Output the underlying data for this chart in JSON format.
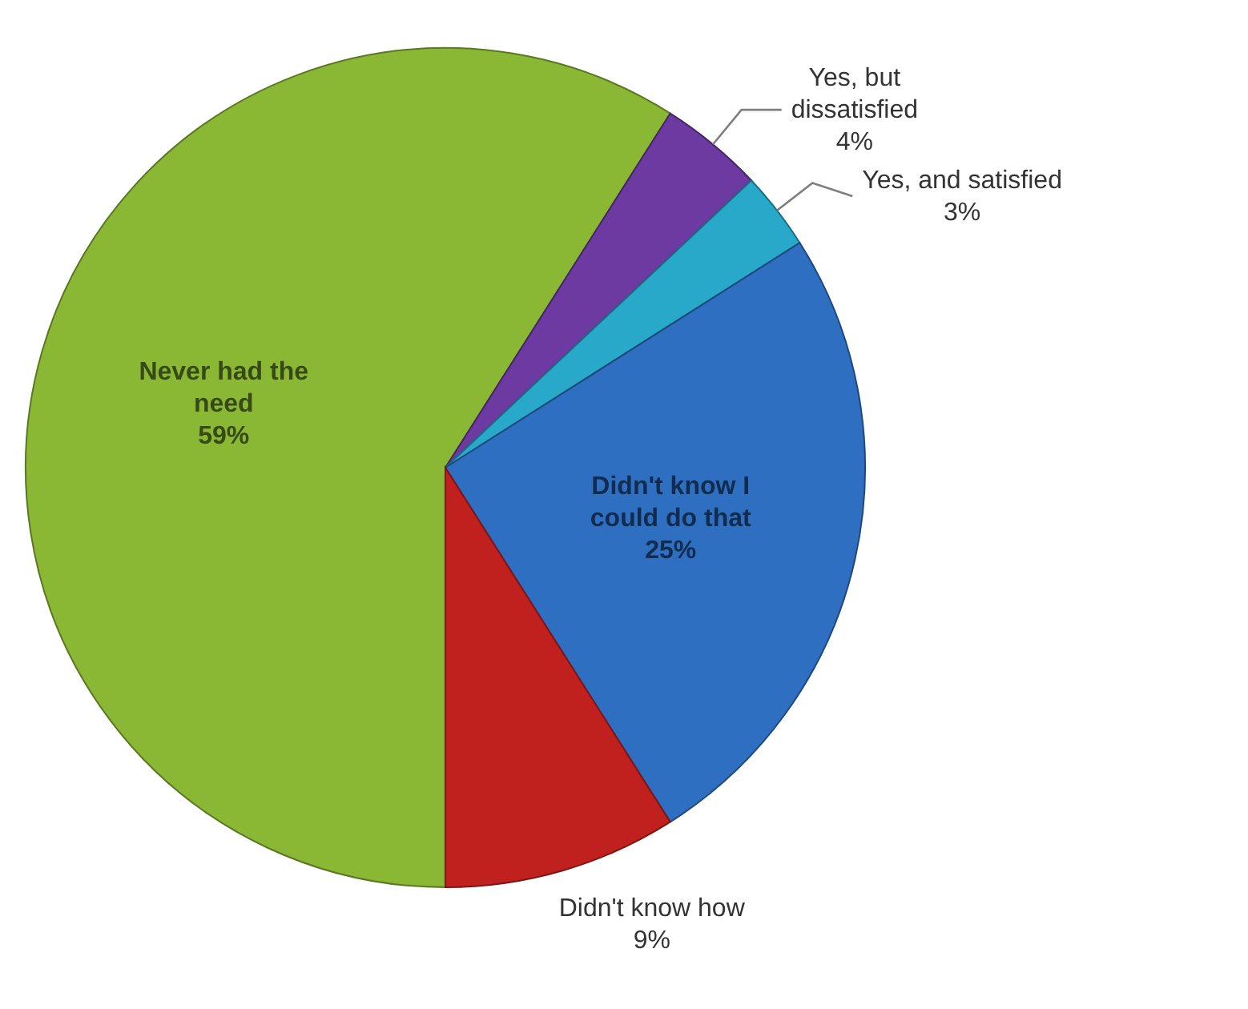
{
  "chart_data": {
    "type": "pie",
    "categories": [
      "Never had the need",
      "Yes, but dissatisfied",
      "Yes, and satisfied",
      "Didn't know I could do that",
      "Didn't know how"
    ],
    "values": [
      59,
      4,
      3,
      25,
      9
    ],
    "colors": [
      "#8ab834",
      "#6c3aa0",
      "#29a9c9",
      "#2e6fc2",
      "#c0211f"
    ],
    "value_labels": [
      "59%",
      "4%",
      "3%",
      "25%",
      "9%"
    ]
  }
}
